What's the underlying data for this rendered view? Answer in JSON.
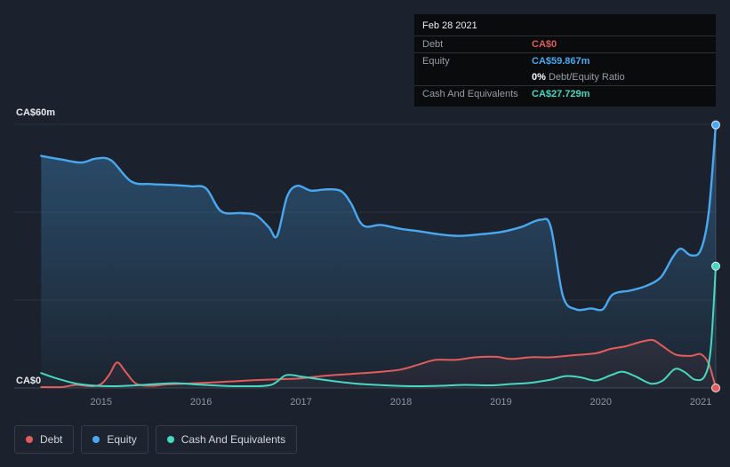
{
  "tooltip": {
    "date": "Feb 28 2021",
    "debt_label": "Debt",
    "debt_value": "CA$0",
    "equity_label": "Equity",
    "equity_value": "CA$59.867m",
    "ratio_value": "0%",
    "ratio_label": "Debt/Equity Ratio",
    "cash_label": "Cash And Equivalents",
    "cash_value": "CA$27.729m"
  },
  "axis": {
    "y_top_label": "CA$60m",
    "y_zero_label": "CA$0"
  },
  "legend": {
    "items": [
      {
        "label": "Debt",
        "color": "#e25c5c"
      },
      {
        "label": "Equity",
        "color": "#4aa8f0"
      },
      {
        "label": "Cash And Equivalents",
        "color": "#46d8c2"
      }
    ]
  },
  "colors": {
    "background": "#1b222d",
    "grid": "rgba(255,255,255,0.08)",
    "baseline": "rgba(255,255,255,0.16)",
    "debt": "#e25c5c",
    "equity": "#4aa8f0",
    "cash": "#46d8c2",
    "tick_text": "#8d95a1"
  },
  "chart_data": {
    "type": "area",
    "title": "",
    "xlabel": "",
    "ylabel": "",
    "unit": "CA$ millions",
    "xlim": [
      2014.13,
      2021.15
    ],
    "ylim": [
      0,
      60
    ],
    "gridline_values": [
      0,
      20,
      40,
      60
    ],
    "y_ticks": [
      {
        "value": 60,
        "label": "CA$60m"
      },
      {
        "value": 0,
        "label": "CA$0"
      }
    ],
    "x_tick_years": [
      2015,
      2016,
      2017,
      2018,
      2019,
      2020,
      2021
    ],
    "legend_position": "bottom-left",
    "series": [
      {
        "name": "Equity",
        "color": "#4aa8f0",
        "end_label": "CA$59.867m",
        "x": [
          2014.4,
          2014.6,
          2014.8,
          2014.95,
          2015.1,
          2015.3,
          2015.5,
          2015.7,
          2015.9,
          2016.05,
          2016.2,
          2016.4,
          2016.55,
          2016.68,
          2016.76,
          2016.86,
          2016.96,
          2017.1,
          2017.25,
          2017.4,
          2017.5,
          2017.62,
          2017.8,
          2018.0,
          2018.2,
          2018.4,
          2018.6,
          2018.8,
          2019.0,
          2019.2,
          2019.4,
          2019.5,
          2019.62,
          2019.75,
          2019.9,
          2020.02,
          2020.12,
          2020.3,
          2020.45,
          2020.6,
          2020.72,
          2020.8,
          2020.9,
          2021.0,
          2021.08,
          2021.15
        ],
        "values": [
          52.8,
          52.0,
          51.3,
          52.2,
          51.8,
          47.0,
          46.4,
          46.2,
          45.9,
          45.4,
          40.2,
          39.8,
          39.3,
          36.5,
          34.6,
          43.5,
          46.0,
          44.9,
          45.2,
          44.8,
          42.0,
          37.0,
          37.1,
          36.2,
          35.6,
          34.9,
          34.6,
          35.0,
          35.5,
          36.6,
          38.3,
          36.5,
          21.0,
          17.9,
          18.1,
          17.9,
          21.3,
          22.2,
          23.2,
          25.2,
          29.8,
          31.7,
          30.2,
          31.4,
          40.0,
          59.867
        ]
      },
      {
        "name": "Debt",
        "color": "#e25c5c",
        "end_label": "CA$0",
        "x": [
          2014.4,
          2014.6,
          2014.75,
          2014.9,
          2015.0,
          2015.08,
          2015.16,
          2015.25,
          2015.35,
          2015.5,
          2015.65,
          2015.85,
          2016.05,
          2016.3,
          2016.55,
          2016.8,
          2017.0,
          2017.25,
          2017.5,
          2017.75,
          2018.0,
          2018.2,
          2018.35,
          2018.55,
          2018.75,
          2018.95,
          2019.1,
          2019.3,
          2019.5,
          2019.75,
          2019.95,
          2020.1,
          2020.25,
          2020.4,
          2020.52,
          2020.62,
          2020.75,
          2020.9,
          2021.0,
          2021.08,
          2021.15
        ],
        "values": [
          0.2,
          0.2,
          0.7,
          0.4,
          0.9,
          3.0,
          5.8,
          3.5,
          1.0,
          0.5,
          0.8,
          1.0,
          1.2,
          1.5,
          1.8,
          2.0,
          2.2,
          2.8,
          3.2,
          3.6,
          4.2,
          5.5,
          6.4,
          6.4,
          7.0,
          7.1,
          6.6,
          7.0,
          7.0,
          7.5,
          7.9,
          8.9,
          9.5,
          10.5,
          10.9,
          9.5,
          7.6,
          7.3,
          7.7,
          5.5,
          0
        ]
      },
      {
        "name": "Cash And Equivalents",
        "color": "#46d8c2",
        "end_label": "CA$27.729m",
        "x": [
          2014.4,
          2014.55,
          2014.75,
          2014.95,
          2015.15,
          2015.35,
          2015.55,
          2015.75,
          2015.95,
          2016.2,
          2016.45,
          2016.7,
          2016.85,
          2017.0,
          2017.15,
          2017.35,
          2017.55,
          2017.75,
          2017.95,
          2018.15,
          2018.4,
          2018.65,
          2018.9,
          2019.1,
          2019.3,
          2019.5,
          2019.65,
          2019.8,
          2019.95,
          2020.1,
          2020.22,
          2020.35,
          2020.5,
          2020.62,
          2020.74,
          2020.84,
          2020.94,
          2021.04,
          2021.1,
          2021.15
        ],
        "values": [
          3.4,
          2.2,
          1.0,
          0.5,
          0.4,
          0.6,
          0.9,
          1.1,
          0.8,
          0.5,
          0.4,
          0.7,
          2.9,
          2.6,
          2.1,
          1.5,
          1.0,
          0.7,
          0.5,
          0.4,
          0.5,
          0.7,
          0.6,
          0.9,
          1.2,
          1.9,
          2.7,
          2.4,
          1.7,
          2.9,
          3.7,
          2.6,
          1.0,
          1.7,
          4.3,
          3.6,
          1.9,
          2.7,
          9.0,
          27.729
        ]
      }
    ]
  }
}
